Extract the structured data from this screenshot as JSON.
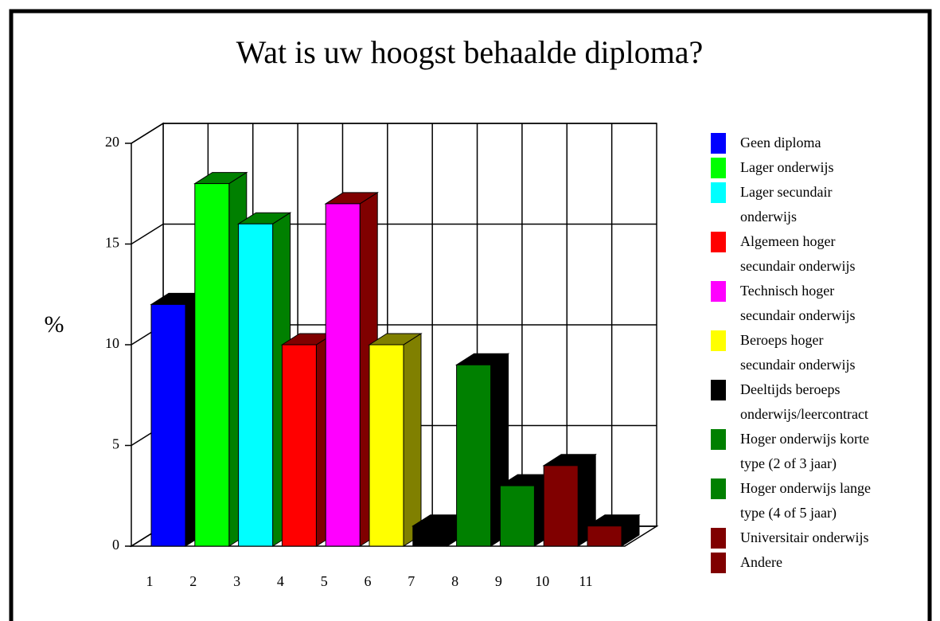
{
  "chart_data": {
    "type": "bar3d",
    "title": "Wat is uw hoogst behaalde diploma?",
    "y_label": "%",
    "categories": [
      "1",
      "2",
      "3",
      "4",
      "5",
      "6",
      "7",
      "8",
      "9",
      "10",
      "11"
    ],
    "values": [
      12,
      18,
      16,
      10,
      17,
      10,
      1,
      9,
      3,
      4,
      1
    ],
    "colors": [
      "#0000ff",
      "#00ff00",
      "#00ffff",
      "#ff0000",
      "#ff00ff",
      "#ffff00",
      "#000000",
      "#008000",
      "#008000",
      "#800000",
      "#800000"
    ],
    "side_colors": [
      "#000000",
      "#008000",
      "#008000",
      "#800000",
      "#800000",
      "#808000",
      "#000000",
      "#000000",
      "#000000",
      "#000000",
      "#000000"
    ],
    "legend": [
      "Geen diploma",
      "Lager onderwijs",
      "Lager secundair onderwijs",
      "Algemeen hoger secundair onderwijs",
      "Technisch hoger secundair onderwijs",
      "Beroeps hoger secundair onderwijs",
      "Deeltijds beroeps onderwijs/leercontract",
      "Hoger onderwijs korte type (2 of 3 jaar)",
      "Hoger onderwijs lange type (4 of 5 jaar)",
      "Universitair onderwijs",
      "Andere"
    ],
    "ylim": [
      0,
      20
    ],
    "yticks": [
      0,
      5,
      10,
      15,
      20
    ],
    "grid": true
  }
}
